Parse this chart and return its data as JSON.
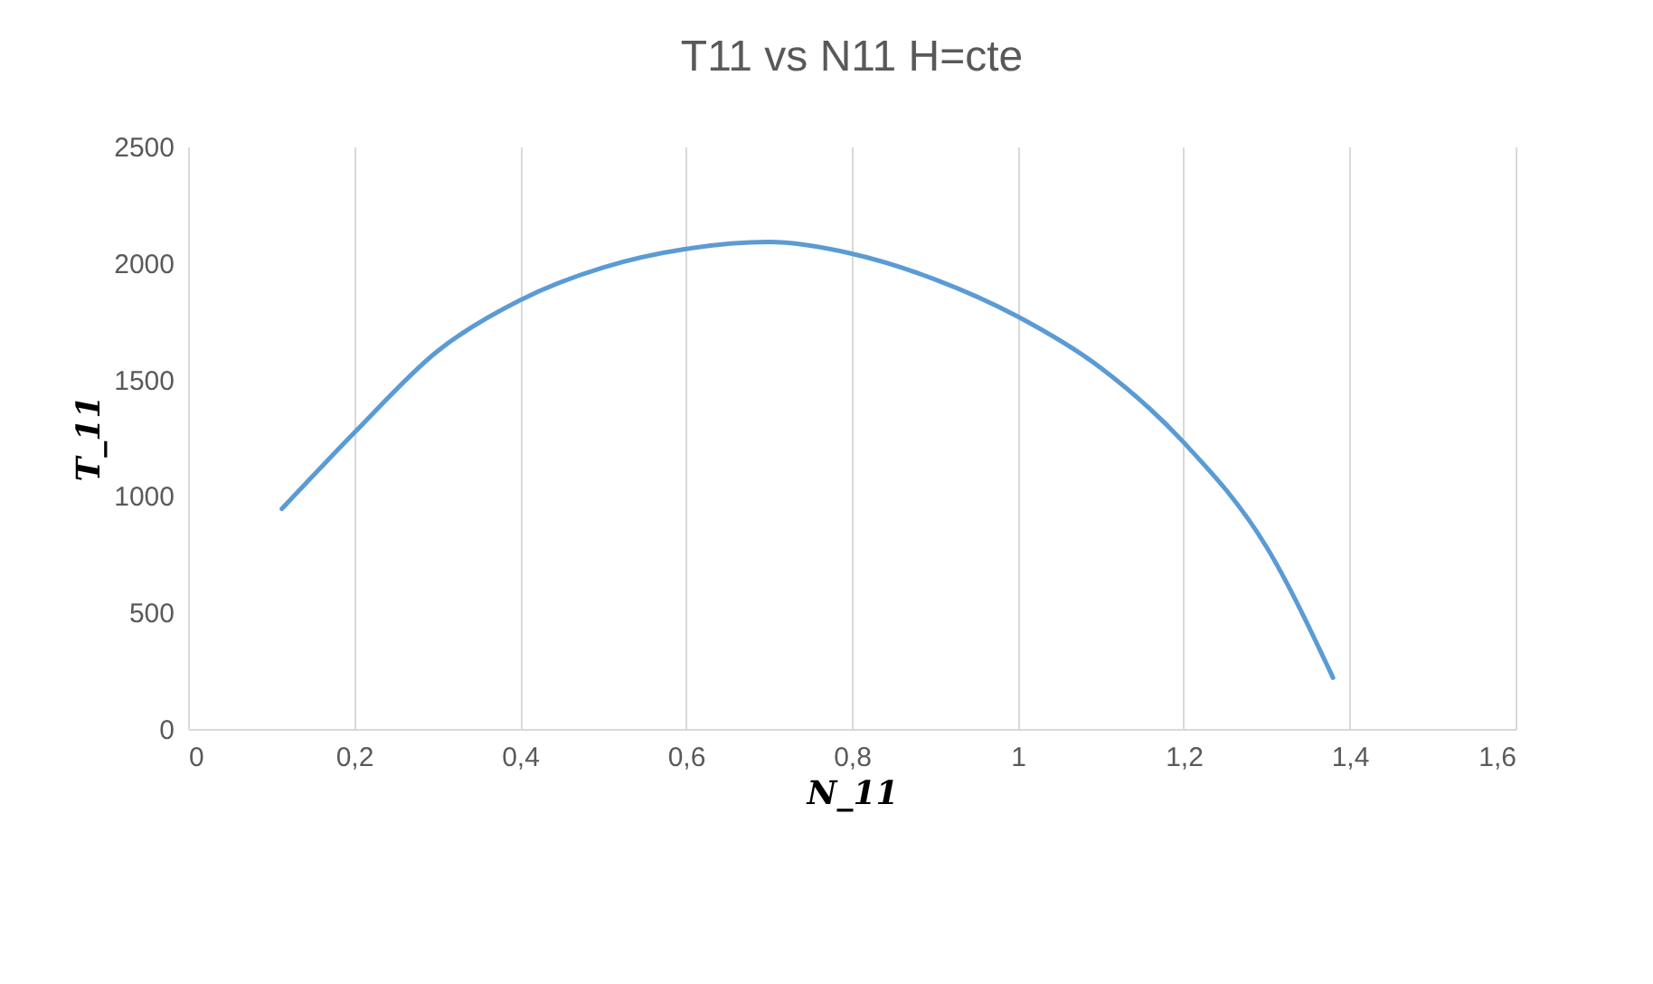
{
  "chart_data": {
    "type": "line",
    "title": "T11 vs N11 H=cte",
    "xlabel": "N_11",
    "ylabel": "T_11",
    "x": [
      0.113,
      0.2,
      0.3,
      0.4,
      0.5,
      0.6,
      0.7,
      0.8,
      0.9,
      1.0,
      1.1,
      1.2,
      1.3,
      1.38
    ],
    "series": [
      {
        "color": "#5b9bd5",
        "values": [
          945,
          1270,
          1620,
          1840,
          1980,
          2060,
          2090,
          2040,
          1930,
          1770,
          1550,
          1230,
          780,
          220
        ]
      }
    ],
    "xlim": [
      0,
      1.6
    ],
    "xticks": [
      0,
      {
        "value": 0.2,
        "label": "0,2"
      },
      {
        "value": 0.4,
        "label": "0,4"
      },
      {
        "value": 0.6,
        "label": "0,6"
      },
      {
        "value": 0.8,
        "label": "0,8"
      },
      1,
      {
        "value": 1.2,
        "label": "1,2"
      },
      {
        "value": 1.4,
        "label": "1,4"
      },
      {
        "value": 1.6,
        "label": "1,6"
      }
    ],
    "ylim": [
      0,
      2500
    ],
    "yticks": [
      0,
      500,
      1000,
      1500,
      2000,
      2500
    ],
    "grid": "x",
    "marker": "none",
    "line_style": "solid"
  }
}
